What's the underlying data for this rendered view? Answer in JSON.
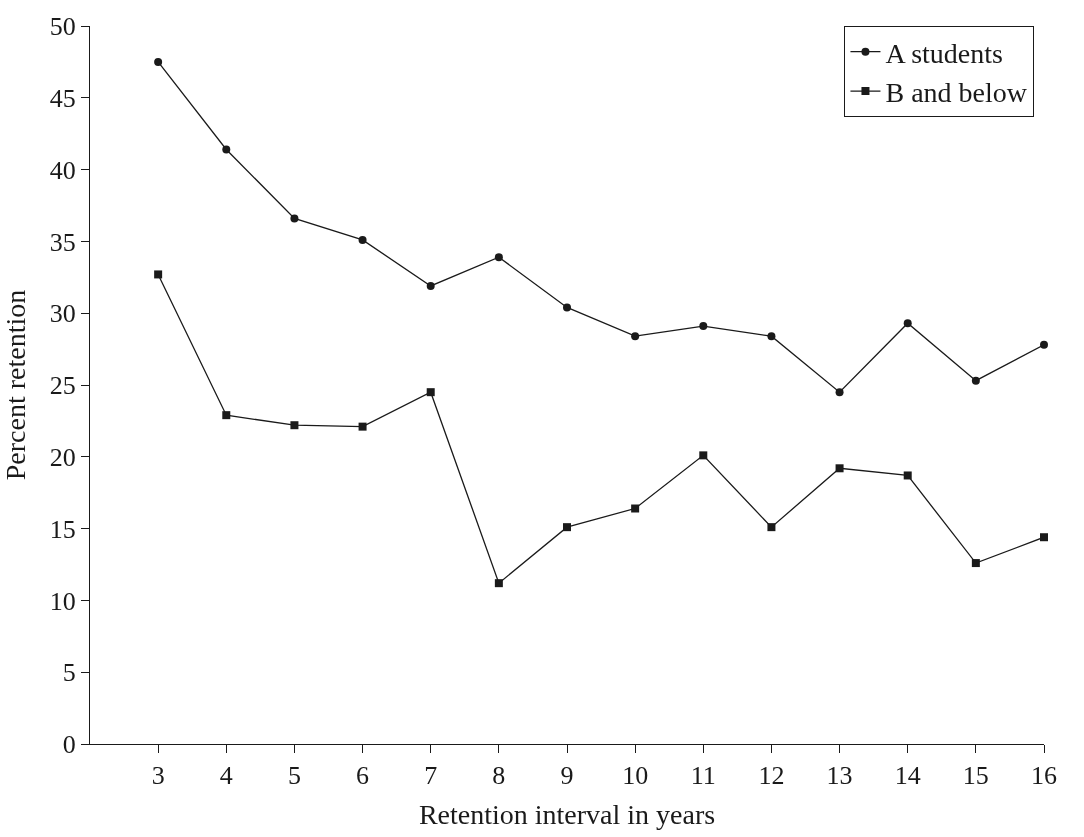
{
  "chart_data": {
    "type": "line",
    "xlabel": "Retention interval in years",
    "ylabel": "Percent retention",
    "x": [
      3,
      4,
      5,
      6,
      7,
      8,
      9,
      10,
      11,
      12,
      13,
      14,
      15,
      16
    ],
    "series": [
      {
        "name": "A students",
        "color": "#1a1a1a",
        "marker": "circle",
        "values": [
          47.5,
          41.4,
          36.6,
          35.1,
          31.9,
          33.9,
          30.4,
          28.4,
          29.1,
          28.4,
          24.5,
          29.3,
          25.3,
          27.8
        ]
      },
      {
        "name": "B and below",
        "color": "#1a1a1a",
        "marker": "square",
        "values": [
          32.7,
          22.9,
          22.2,
          22.1,
          24.5,
          11.2,
          15.1,
          16.4,
          20.1,
          15.1,
          19.2,
          18.7,
          12.6,
          14.4
        ]
      }
    ],
    "xlim": [
      2,
      16
    ],
    "xticks": [
      3,
      4,
      5,
      6,
      7,
      8,
      9,
      10,
      11,
      12,
      13,
      14,
      15,
      16
    ],
    "ylim": [
      0,
      50
    ],
    "yticks": [
      0,
      5,
      10,
      15,
      20,
      25,
      30,
      35,
      40,
      45,
      50
    ],
    "legend": "top right",
    "line_style": "solid"
  }
}
